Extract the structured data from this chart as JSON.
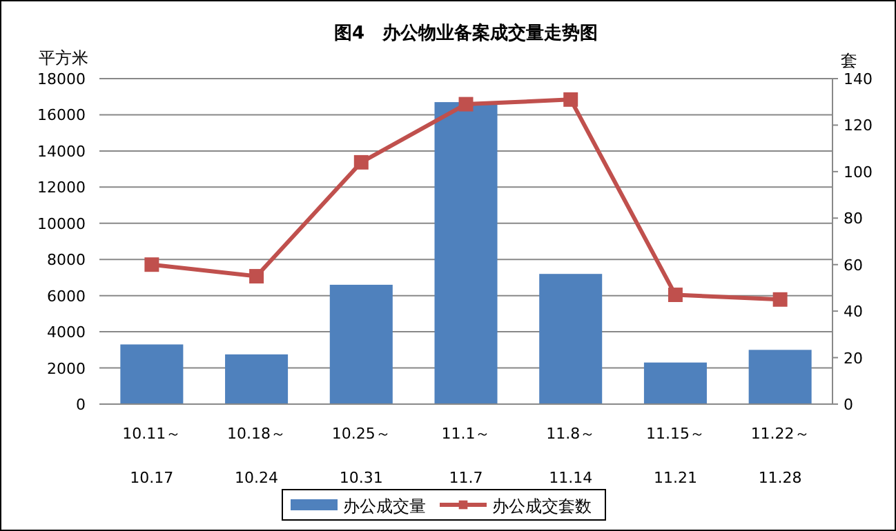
{
  "chart_data": {
    "type": "bar",
    "title": "图4　办公物业备案成交量走势图",
    "ylabel": "平方米",
    "y2label": "套",
    "categories": [
      "10.11～\n10.17",
      "10.18～\n10.24",
      "10.25～\n10.31",
      "11.1～\n11.7",
      "11.8～\n11.14",
      "11.15～\n11.21",
      "11.22～\n11.28"
    ],
    "series": [
      {
        "name": "办公成交量",
        "color": "#4f81bd",
        "values": [
          3300,
          2750,
          6600,
          16700,
          7200,
          2300,
          3000
        ]
      },
      {
        "name": "办公成交套数",
        "type": "line",
        "axis": "y2",
        "color": "#c0504d",
        "marker": "square",
        "values": [
          60,
          55,
          104,
          129,
          131,
          47,
          45
        ]
      }
    ],
    "ylim": [
      0,
      18000
    ],
    "yticks": [
      0,
      2000,
      4000,
      6000,
      8000,
      10000,
      12000,
      14000,
      16000,
      18000
    ],
    "y2lim": [
      0,
      140
    ],
    "y2ticks": [
      0,
      20,
      40,
      60,
      80,
      100,
      120,
      140
    ],
    "grid": "y",
    "legend": "bottom"
  }
}
